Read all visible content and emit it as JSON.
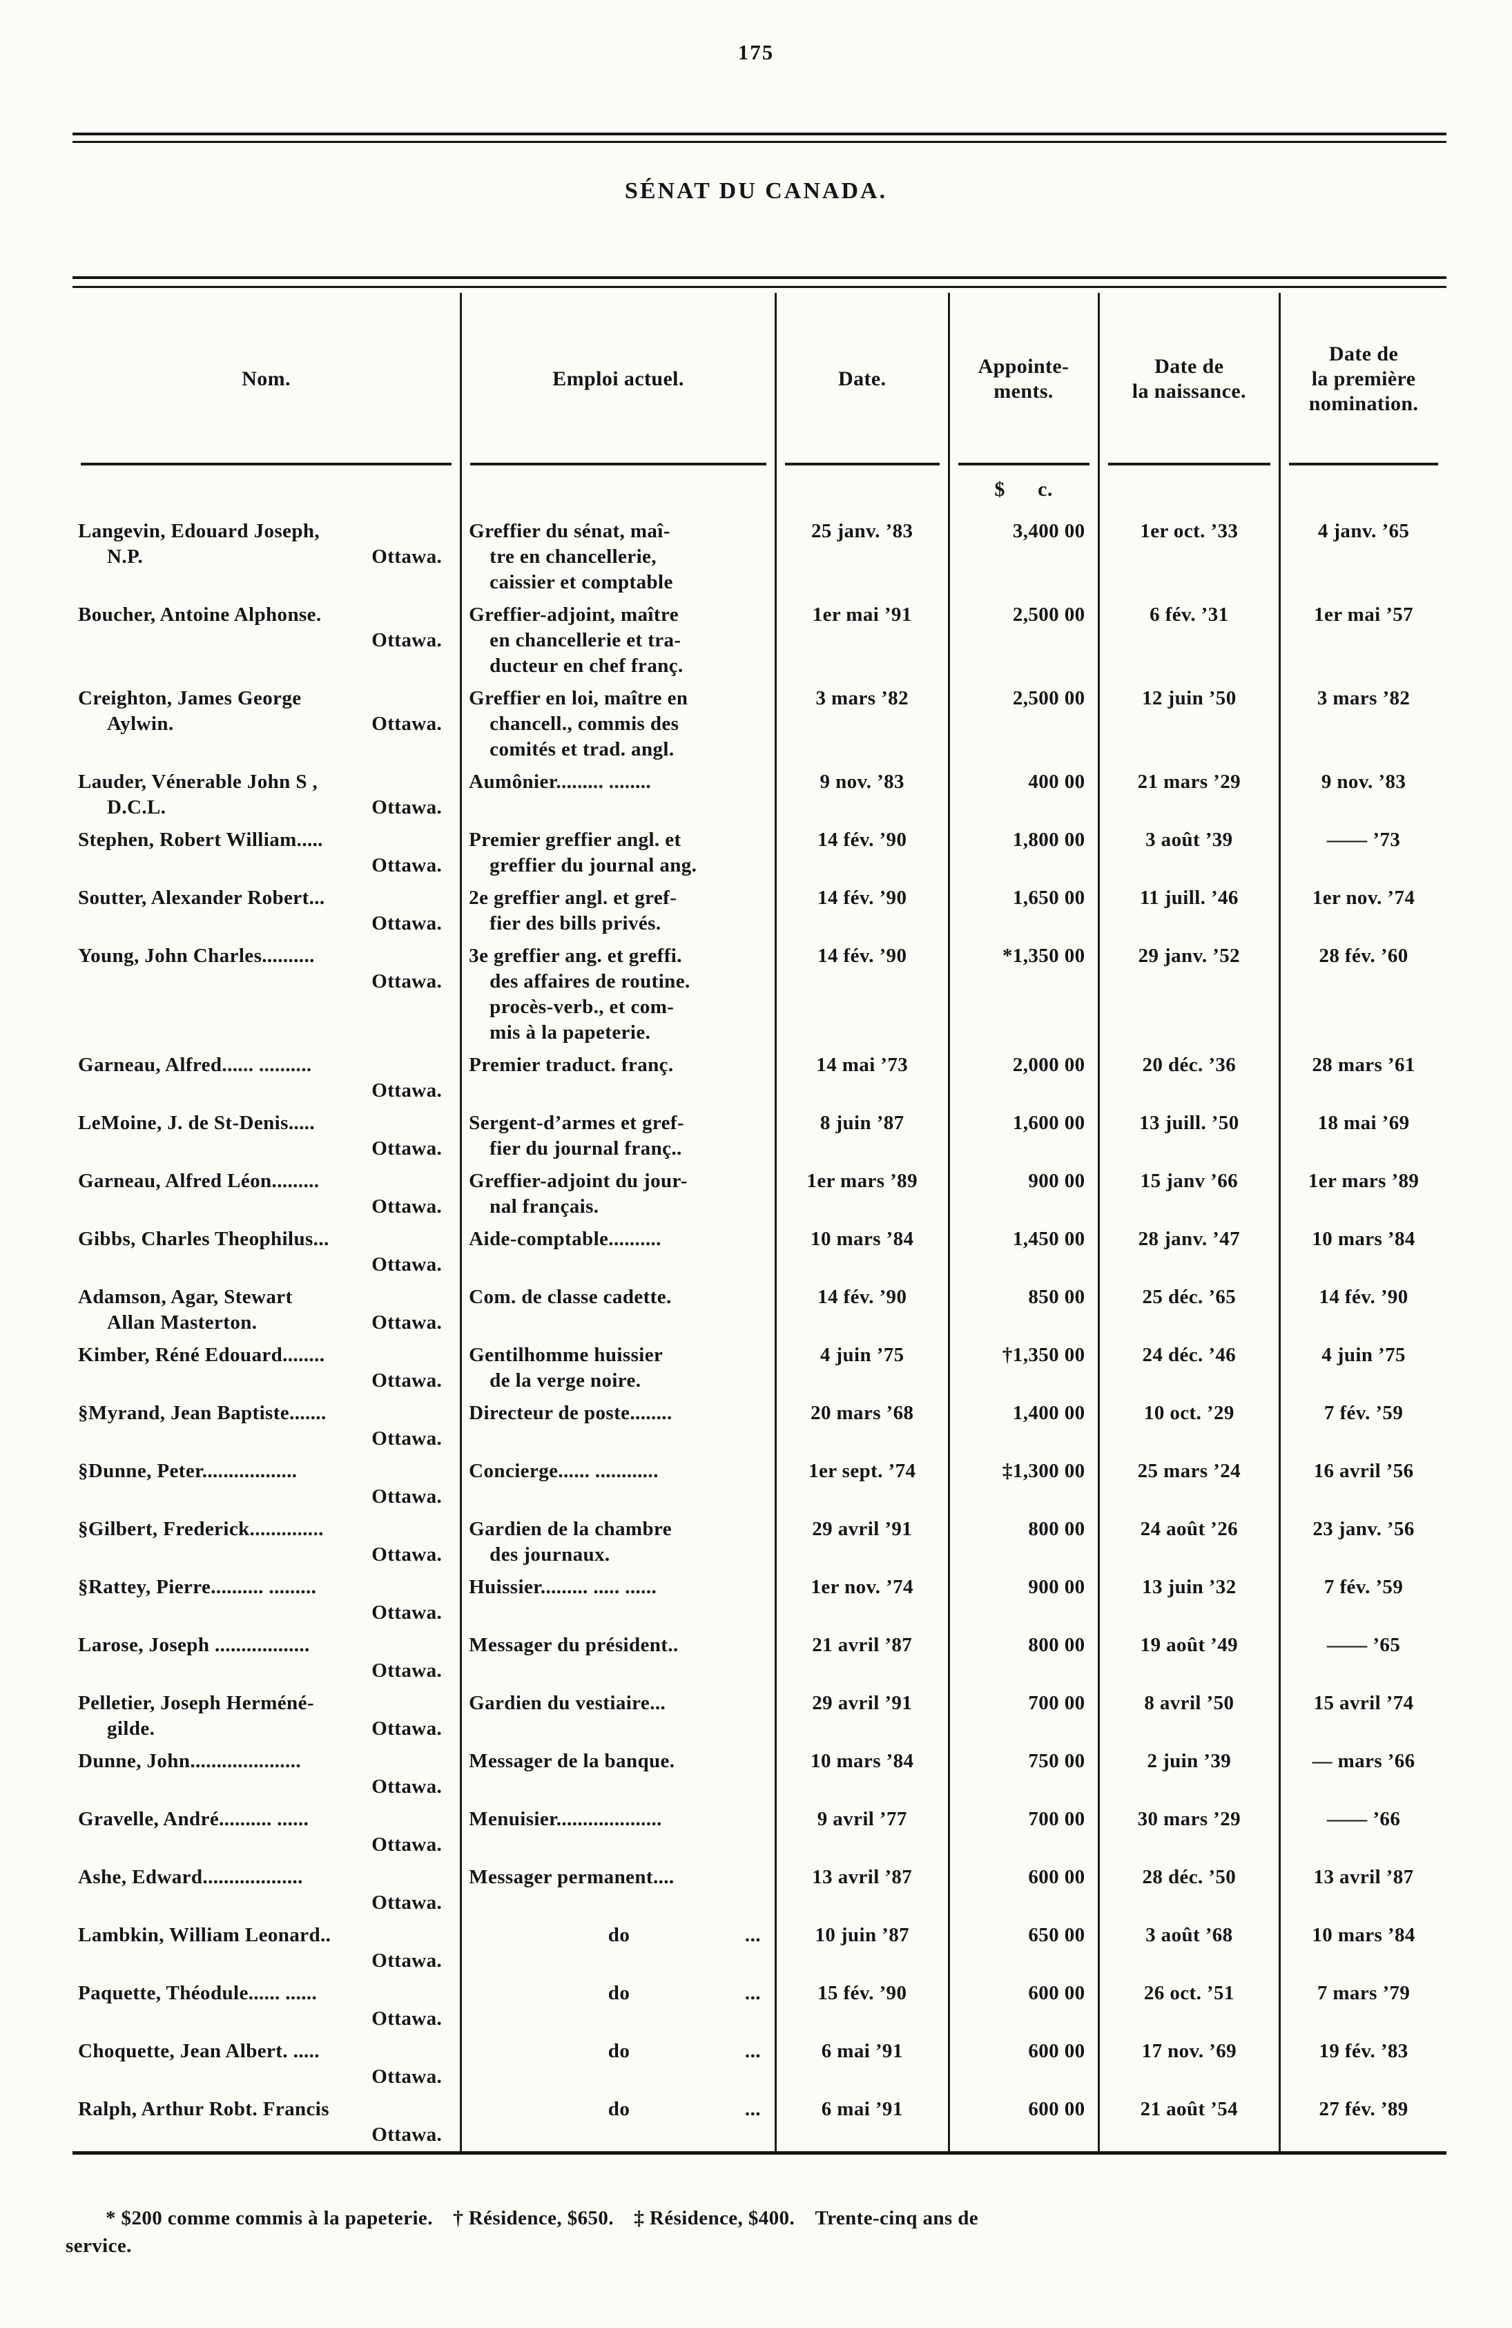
{
  "page": {
    "number": "175",
    "title": "SÉNAT DU CANADA."
  },
  "table": {
    "headers": {
      "nom": "Nom.",
      "emploi": "Emploi actuel.",
      "date": "Date.",
      "appointements": "Appointe-\nments.",
      "naissance": "Date de\nla naissance.",
      "nomination": "Date de\nla première\nnomination."
    },
    "currency_header": "$      c.",
    "rows": [
      {
        "name1": "Langevin, Edouard Joseph,",
        "name2l": "N.P.",
        "name2r": "Ottawa.",
        "emploi": [
          "Greffier du sénat, maî-",
          "tre en chancellerie,",
          "caissier et comptable"
        ],
        "date": "25 janv. ’83",
        "app": "3,400 00",
        "naiss": "1er oct. ’33",
        "nomin": "4 janv. ’65"
      },
      {
        "name1": "Boucher, Antoine Alphonse.",
        "name2l": "",
        "name2r": "Ottawa.",
        "emploi": [
          "Greffier-adjoint, maître",
          "en chancellerie et tra-",
          "ducteur en chef franç."
        ],
        "date": "1er mai ’91",
        "app": "2,500 00",
        "naiss": "6 fév. ’31",
        "nomin": "1er mai ’57"
      },
      {
        "name1": "Creighton, James George",
        "name2l": "Aylwin.",
        "name2r": "Ottawa.",
        "emploi": [
          "Greffier en loi, maître en",
          "chancell., commis des",
          "comités et trad. angl."
        ],
        "date": "3 mars ’82",
        "app": "2,500 00",
        "naiss": "12 juin ’50",
        "nomin": "3 mars ’82"
      },
      {
        "name1": "Lauder, Vénerable John S ,",
        "name2l": "D.C.L.",
        "name2r": "Ottawa.",
        "emploi": [
          "Aumônier......... ........"
        ],
        "date": "9 nov. ’83",
        "app": "400 00",
        "naiss": "21 mars ’29",
        "nomin": "9 nov. ’83"
      },
      {
        "name1": "Stephen, Robert William.....",
        "name2l": "",
        "name2r": "Ottawa.",
        "emploi": [
          "Premier greffier angl. et",
          "greffier du journal ang."
        ],
        "date": "14 fév. ’90",
        "app": "1,800 00",
        "naiss": "3 août ’39",
        "nomin": "—— ’73"
      },
      {
        "name1": "Soutter, Alexander Robert...",
        "name2l": "",
        "name2r": "Ottawa.",
        "emploi": [
          "2e greffier angl. et gref-",
          "fier des bills privés."
        ],
        "date": "14 fév. ’90",
        "app": "1,650 00",
        "naiss": "11 juill. ’46",
        "nomin": "1er nov. ’74"
      },
      {
        "name1": "Young, John Charles..........",
        "name2l": "",
        "name2r": "Ottawa.",
        "emploi": [
          "3e greffier ang. et greffi.",
          "des affaires de routine.",
          "procès-verb., et com-",
          "mis à la papeterie."
        ],
        "date": "14 fév. ’90",
        "app": "*1,350 00",
        "naiss": "29 janv. ’52",
        "nomin": "28 fév. ’60"
      },
      {
        "name1": "Garneau, Alfred...... ..........",
        "name2l": "",
        "name2r": "Ottawa.",
        "emploi": [
          "Premier traduct. franç."
        ],
        "date": "14 mai ’73",
        "app": "2,000 00",
        "naiss": "20 déc. ’36",
        "nomin": "28 mars ’61"
      },
      {
        "name1": "LeMoine, J. de St-Denis.....",
        "name2l": "",
        "name2r": "Ottawa.",
        "emploi": [
          "Sergent-d’armes et gref-",
          "fier du journal franç.."
        ],
        "date": "8 juin ’87",
        "app": "1,600 00",
        "naiss": "13 juill. ’50",
        "nomin": "18 mai ’69"
      },
      {
        "name1": "Garneau, Alfred Léon.........",
        "name2l": "",
        "name2r": "Ottawa.",
        "emploi": [
          "Greffier-adjoint du jour-",
          "nal français."
        ],
        "date": "1er mars ’89",
        "app": "900 00",
        "naiss": "15 janv ’66",
        "nomin": "1er mars ’89"
      },
      {
        "name1": "Gibbs, Charles Theophilus...",
        "name2l": "",
        "name2r": "Ottawa.",
        "emploi": [
          "Aide-comptable.........."
        ],
        "date": "10 mars ’84",
        "app": "1,450 00",
        "naiss": "28 janv. ’47",
        "nomin": "10 mars ’84"
      },
      {
        "name1": "Adamson, Agar, Stewart",
        "name2l": "Allan Masterton.",
        "name2r": "Ottawa.",
        "emploi": [
          "Com. de classe cadette."
        ],
        "date": "14 fév. ’90",
        "app": "850 00",
        "naiss": "25 déc. ’65",
        "nomin": "14 fév. ’90"
      },
      {
        "name1": "Kimber, Réné Edouard........",
        "name2l": "",
        "name2r": "Ottawa.",
        "emploi": [
          "Gentilhomme huissier",
          "de la verge noire."
        ],
        "date": "4 juin ’75",
        "app": "†1,350 00",
        "naiss": "24 déc. ’46",
        "nomin": "4 juin ’75"
      },
      {
        "name1": "§Myrand, Jean Baptiste.......",
        "name2l": "",
        "name2r": "Ottawa.",
        "emploi": [
          "Directeur de poste........"
        ],
        "date": "20 mars ’68",
        "app": "1,400 00",
        "naiss": "10 oct. ’29",
        "nomin": "7 fév. ’59"
      },
      {
        "name1": "§Dunne, Peter..................",
        "name2l": "",
        "name2r": "Ottawa.",
        "emploi": [
          "Concierge...... ............"
        ],
        "date": "1er sept. ’74",
        "app": "‡1,300 00",
        "naiss": "25 mars ’24",
        "nomin": "16 avril ’56"
      },
      {
        "name1": "§Gilbert, Frederick..............",
        "name2l": "",
        "name2r": "Ottawa.",
        "emploi": [
          "Gardien de la chambre",
          "des journaux."
        ],
        "date": "29 avril ’91",
        "app": "800 00",
        "naiss": "24 août ’26",
        "nomin": "23 janv. ’56"
      },
      {
        "name1": "§Rattey, Pierre.......... .........",
        "name2l": "",
        "name2r": "Ottawa.",
        "emploi": [
          "Huissier......... ..... ......"
        ],
        "date": "1er nov. ’74",
        "app": "900 00",
        "naiss": "13 juin ’32",
        "nomin": "7 fév. ’59"
      },
      {
        "name1": "Larose, Joseph ..................",
        "name2l": "",
        "name2r": "Ottawa.",
        "emploi": [
          "Messager du président.."
        ],
        "date": "21 avril ’87",
        "app": "800 00",
        "naiss": "19 août ’49",
        "nomin": "—— ’65"
      },
      {
        "name1": "Pelletier, Joseph Herméné-",
        "name2l": "gilde.",
        "name2r": "Ottawa.",
        "emploi": [
          "Gardien du vestiaire..."
        ],
        "date": "29 avril ’91",
        "app": "700 00",
        "naiss": "8 avril ’50",
        "nomin": "15 avril ’74"
      },
      {
        "name1": "Dunne, John.....................",
        "name2l": "",
        "name2r": "Ottawa.",
        "emploi": [
          "Messager de la banque."
        ],
        "date": "10 mars ’84",
        "app": "750 00",
        "naiss": "2 juin ’39",
        "nomin": "— mars ’66"
      },
      {
        "name1": "Gravelle, André.......... ......",
        "name2l": "",
        "name2r": "Ottawa.",
        "emploi": [
          "Menuisier...................."
        ],
        "date": "9 avril ’77",
        "app": "700 00",
        "naiss": "30 mars ’29",
        "nomin": "—— ’66"
      },
      {
        "name1": "Ashe, Edward...................",
        "name2l": "",
        "name2r": "Ottawa.",
        "emploi": [
          "Messager permanent...."
        ],
        "date": "13 avril ’87",
        "app": "600 00",
        "naiss": "28 déc. ’50",
        "nomin": "13 avril ’87"
      },
      {
        "name1": "Lambkin, William Leonard..",
        "name2l": "",
        "name2r": "Ottawa.",
        "do": true,
        "emploi": [
          "do"
        ],
        "trail": "...",
        "date": "10 juin ’87",
        "app": "650 00",
        "naiss": "3 août ’68",
        "nomin": "10 mars ’84"
      },
      {
        "name1": "Paquette, Théodule...... ......",
        "name2l": "",
        "name2r": "Ottawa.",
        "do": true,
        "emploi": [
          "do"
        ],
        "trail": "...",
        "date": "15 fév. ’90",
        "app": "600 00",
        "naiss": "26 oct. ’51",
        "nomin": "7 mars ’79"
      },
      {
        "name1": "Choquette, Jean Albert. .....",
        "name2l": "",
        "name2r": "Ottawa.",
        "do": true,
        "emploi": [
          "do"
        ],
        "trail": "...",
        "date": "6 mai ’91",
        "app": "600 00",
        "naiss": "17 nov. ’69",
        "nomin": "19 fév. ’83"
      },
      {
        "name1": "Ralph, Arthur Robt. Francis",
        "name2l": "",
        "name2r": "Ottawa.",
        "do": true,
        "emploi": [
          "do"
        ],
        "trail": "...",
        "date": "6 mai ’91",
        "app": "600 00",
        "naiss": "21 août ’54",
        "nomin": "27 fév. ’89"
      }
    ]
  },
  "footnote": "* $200 comme commis à la papeterie. † Résidence, $650. ‡ Résidence, $400. Trente-cinq ans de\nservice."
}
